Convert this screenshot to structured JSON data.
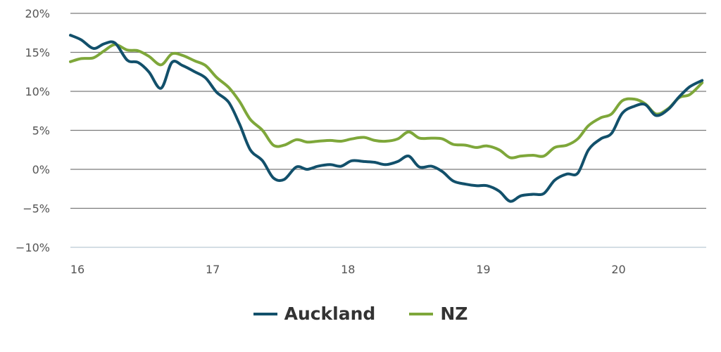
{
  "chart_data": {
    "type": "line",
    "title": "",
    "xlabel": "",
    "ylabel": "",
    "xlim": [
      16,
      20.7
    ],
    "ylim": [
      -10,
      20
    ],
    "x_ticks": [
      {
        "value": 16,
        "label": "16"
      },
      {
        "value": 17,
        "label": "17"
      },
      {
        "value": 18,
        "label": "18"
      },
      {
        "value": 19,
        "label": "19"
      },
      {
        "value": 20,
        "label": "20"
      }
    ],
    "y_ticks": [
      {
        "value": 20,
        "label": "20%"
      },
      {
        "value": 15,
        "label": "15%"
      },
      {
        "value": 10,
        "label": "10%"
      },
      {
        "value": 5,
        "label": "5%"
      },
      {
        "value": 0,
        "label": "0%"
      },
      {
        "value": -5,
        "label": "−5%"
      },
      {
        "value": -10,
        "label": "−10%"
      }
    ],
    "grid": true,
    "legend_position": "bottom-center",
    "series": [
      {
        "name": "Auckland",
        "color": "#12506b",
        "points": [
          [
            16.0,
            17.2
          ],
          [
            16.08,
            16.6
          ],
          [
            16.17,
            15.5
          ],
          [
            16.25,
            16.1
          ],
          [
            16.33,
            16.2
          ],
          [
            16.42,
            14.0
          ],
          [
            16.5,
            13.7
          ],
          [
            16.58,
            12.5
          ],
          [
            16.67,
            10.4
          ],
          [
            16.75,
            13.7
          ],
          [
            16.83,
            13.3
          ],
          [
            16.92,
            12.5
          ],
          [
            17.0,
            11.7
          ],
          [
            17.08,
            9.9
          ],
          [
            17.17,
            8.6
          ],
          [
            17.25,
            5.8
          ],
          [
            17.33,
            2.5
          ],
          [
            17.42,
            1.1
          ],
          [
            17.5,
            -1.1
          ],
          [
            17.58,
            -1.3
          ],
          [
            17.67,
            0.3
          ],
          [
            17.75,
            0.0
          ],
          [
            17.83,
            0.4
          ],
          [
            17.92,
            0.6
          ],
          [
            18.0,
            0.4
          ],
          [
            18.08,
            1.1
          ],
          [
            18.17,
            1.0
          ],
          [
            18.25,
            0.9
          ],
          [
            18.33,
            0.6
          ],
          [
            18.42,
            1.0
          ],
          [
            18.5,
            1.7
          ],
          [
            18.58,
            0.3
          ],
          [
            18.67,
            0.4
          ],
          [
            18.75,
            -0.3
          ],
          [
            18.83,
            -1.5
          ],
          [
            18.92,
            -1.9
          ],
          [
            19.0,
            -2.1
          ],
          [
            19.08,
            -2.1
          ],
          [
            19.17,
            -2.8
          ],
          [
            19.25,
            -4.1
          ],
          [
            19.33,
            -3.4
          ],
          [
            19.42,
            -3.2
          ],
          [
            19.5,
            -3.1
          ],
          [
            19.58,
            -1.4
          ],
          [
            19.67,
            -0.6
          ],
          [
            19.75,
            -0.5
          ],
          [
            19.83,
            2.5
          ],
          [
            19.92,
            3.9
          ],
          [
            20.0,
            4.6
          ],
          [
            20.08,
            7.2
          ],
          [
            20.17,
            8.1
          ],
          [
            20.25,
            8.3
          ],
          [
            20.33,
            6.9
          ],
          [
            20.42,
            7.7
          ],
          [
            20.5,
            9.3
          ],
          [
            20.58,
            10.6
          ],
          [
            20.67,
            11.4
          ]
        ]
      },
      {
        "name": "NZ",
        "color": "#7ea73a",
        "points": [
          [
            16.0,
            13.8
          ],
          [
            16.08,
            14.2
          ],
          [
            16.17,
            14.3
          ],
          [
            16.25,
            15.2
          ],
          [
            16.33,
            16.0
          ],
          [
            16.42,
            15.3
          ],
          [
            16.5,
            15.2
          ],
          [
            16.58,
            14.5
          ],
          [
            16.67,
            13.4
          ],
          [
            16.75,
            14.8
          ],
          [
            16.83,
            14.6
          ],
          [
            16.92,
            13.9
          ],
          [
            17.0,
            13.3
          ],
          [
            17.08,
            11.8
          ],
          [
            17.17,
            10.5
          ],
          [
            17.25,
            8.7
          ],
          [
            17.33,
            6.4
          ],
          [
            17.42,
            5.0
          ],
          [
            17.5,
            3.1
          ],
          [
            17.58,
            3.1
          ],
          [
            17.67,
            3.8
          ],
          [
            17.75,
            3.5
          ],
          [
            17.83,
            3.6
          ],
          [
            17.92,
            3.7
          ],
          [
            18.0,
            3.6
          ],
          [
            18.08,
            3.9
          ],
          [
            18.17,
            4.1
          ],
          [
            18.25,
            3.7
          ],
          [
            18.33,
            3.6
          ],
          [
            18.42,
            3.9
          ],
          [
            18.5,
            4.8
          ],
          [
            18.58,
            4.0
          ],
          [
            18.67,
            4.0
          ],
          [
            18.75,
            3.9
          ],
          [
            18.83,
            3.2
          ],
          [
            18.92,
            3.1
          ],
          [
            19.0,
            2.8
          ],
          [
            19.08,
            3.0
          ],
          [
            19.17,
            2.5
          ],
          [
            19.25,
            1.5
          ],
          [
            19.33,
            1.7
          ],
          [
            19.42,
            1.8
          ],
          [
            19.5,
            1.7
          ],
          [
            19.58,
            2.8
          ],
          [
            19.67,
            3.1
          ],
          [
            19.75,
            3.9
          ],
          [
            19.83,
            5.6
          ],
          [
            19.92,
            6.6
          ],
          [
            20.0,
            7.1
          ],
          [
            20.08,
            8.8
          ],
          [
            20.17,
            9.0
          ],
          [
            20.25,
            8.4
          ],
          [
            20.33,
            7.1
          ],
          [
            20.42,
            7.8
          ],
          [
            20.5,
            9.2
          ],
          [
            20.58,
            9.6
          ],
          [
            20.67,
            11.1
          ]
        ]
      }
    ]
  }
}
